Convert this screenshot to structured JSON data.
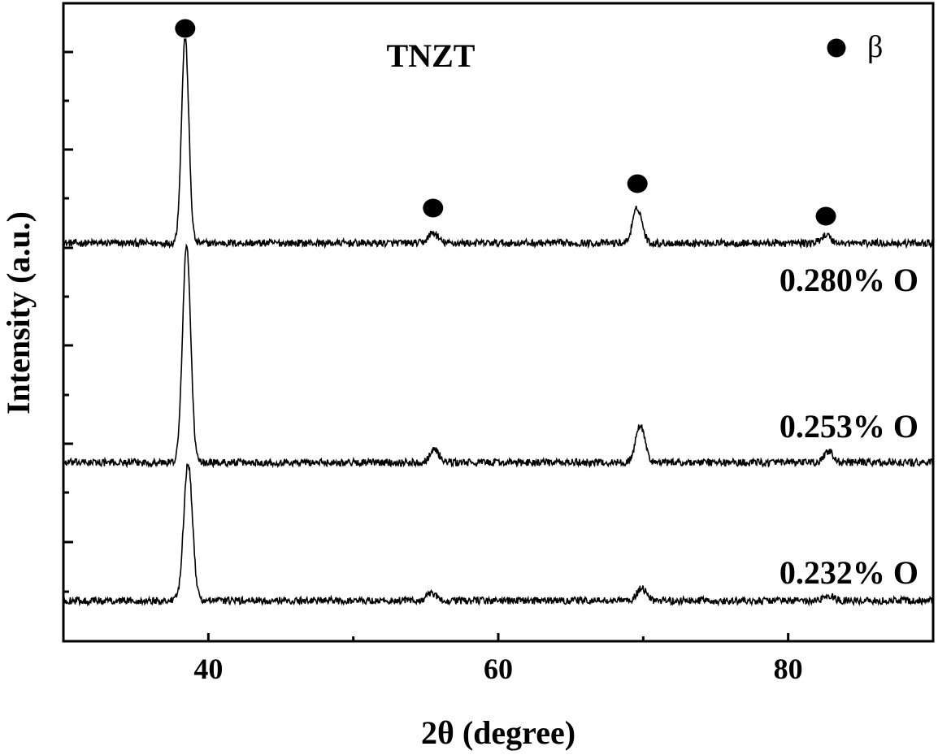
{
  "chart_data": {
    "type": "line",
    "title": "TNZT",
    "xlabel": "2θ (degree)",
    "ylabel": "Intensity (a.u.)",
    "xlim": [
      30,
      90
    ],
    "xticks": [
      40,
      60,
      80
    ],
    "xtick_labels": [
      "40",
      "60",
      "80"
    ],
    "y_ticks_labeled": false,
    "grid": false,
    "legend": {
      "position": "top-right",
      "marker": "filled-circle",
      "label": "β",
      "color": "#000000"
    },
    "line_color": "#000000",
    "peaks_2theta": [
      38.4,
      55.5,
      69.6,
      82.6
    ],
    "phase_markers": [
      {
        "x": 38.4,
        "phase": "β"
      },
      {
        "x": 55.5,
        "phase": "β"
      },
      {
        "x": 69.6,
        "phase": "β"
      },
      {
        "x": 82.6,
        "phase": "β"
      }
    ],
    "series": [
      {
        "name": "0.280% O",
        "peaks": [
          {
            "x": 38.4,
            "intensity": 1.0
          },
          {
            "x": 55.5,
            "intensity": 0.05
          },
          {
            "x": 69.6,
            "intensity": 0.17
          },
          {
            "x": 82.6,
            "intensity": 0.04
          }
        ]
      },
      {
        "name": "0.253% O",
        "peaks": [
          {
            "x": 38.5,
            "intensity": 1.0
          },
          {
            "x": 55.6,
            "intensity": 0.06
          },
          {
            "x": 69.8,
            "intensity": 0.17
          },
          {
            "x": 82.8,
            "intensity": 0.05
          }
        ]
      },
      {
        "name": "0.232% O",
        "peaks": [
          {
            "x": 38.6,
            "intensity": 1.0
          },
          {
            "x": 55.4,
            "intensity": 0.05
          },
          {
            "x": 69.9,
            "intensity": 0.09
          },
          {
            "x": 82.8,
            "intensity": 0.04
          }
        ]
      }
    ]
  }
}
